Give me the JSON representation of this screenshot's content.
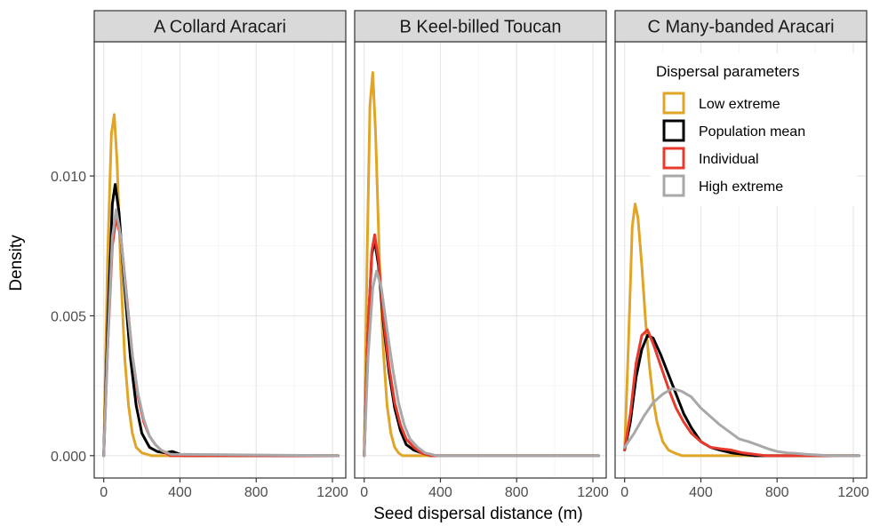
{
  "chart_data": {
    "type": "line",
    "facet_layout": "three panels side by side sharing y-axis",
    "xlabel": "Seed dispersal distance (m)",
    "ylabel": "Density",
    "xlim": [
      -50,
      1270
    ],
    "ylim": [
      -0.0008,
      0.0148
    ],
    "x_ticks": [
      0,
      400,
      800,
      1200
    ],
    "x_tick_labels": [
      "0",
      "400",
      "800",
      "1200"
    ],
    "y_ticks": [
      0.0,
      0.005,
      0.01
    ],
    "y_tick_labels": [
      "0.000",
      "0.005",
      "0.010"
    ],
    "grid": true,
    "legend": {
      "title": "Dispersal parameters",
      "placement": "inside panel C, top-right",
      "entries": [
        {
          "label": "Low extreme",
          "color": "#E0A526"
        },
        {
          "label": "Population mean",
          "color": "#000000"
        },
        {
          "label": "Individual",
          "color": "#E8392D"
        },
        {
          "label": "High extreme",
          "color": "#A8A8A8"
        }
      ]
    },
    "panels": [
      {
        "title": "A  Collard Aracari",
        "series": [
          {
            "name": "Low extreme",
            "color": "#E0A526",
            "x": [
              0,
              20,
              40,
              55,
              70,
              90,
              110,
              130,
              150,
              170,
              200,
              250,
              1230
            ],
            "y": [
              0,
              0.007,
              0.0115,
              0.0122,
              0.0105,
              0.0065,
              0.0035,
              0.0018,
              0.0008,
              0.0003,
              0.0001,
              0,
              0
            ]
          },
          {
            "name": "Population mean",
            "color": "#000000",
            "x": [
              0,
              20,
              45,
              60,
              80,
              110,
              140,
              170,
              200,
              240,
              280,
              320,
              360,
              380,
              420,
              1230
            ],
            "y": [
              0,
              0.0045,
              0.009,
              0.0097,
              0.0087,
              0.006,
              0.0035,
              0.0018,
              0.0008,
              0.0003,
              0.00015,
              0.0001,
              0.00015,
              0.0001,
              0,
              0
            ]
          },
          {
            "name": "Individual",
            "color": "#E8392D",
            "x": [
              0,
              20,
              45,
              65,
              90,
              120,
              150,
              180,
              210,
              240,
              270,
              300,
              350,
              1230
            ],
            "y": [
              0,
              0.0038,
              0.0075,
              0.0085,
              0.0078,
              0.0057,
              0.0036,
              0.0021,
              0.0012,
              0.0007,
              0.0004,
              0.0002,
              0,
              0
            ]
          },
          {
            "name": "High extreme",
            "color": "#A8A8A8",
            "x": [
              0,
              20,
              45,
              65,
              90,
              120,
              150,
              180,
              210,
              240,
              270,
              300,
              350,
              1230
            ],
            "y": [
              0,
              0.0038,
              0.0078,
              0.0088,
              0.0078,
              0.0056,
              0.0036,
              0.0022,
              0.0013,
              0.0007,
              0.0004,
              0.0002,
              5e-05,
              0
            ]
          }
        ]
      },
      {
        "title": "B  Keel-billed Toucan",
        "series": [
          {
            "name": "Low extreme",
            "color": "#E0A526",
            "x": [
              0,
              15,
              30,
              45,
              60,
              80,
              100,
              120,
              140,
              160,
              180,
              200,
              1230
            ],
            "y": [
              0,
              0.007,
              0.0125,
              0.0137,
              0.0115,
              0.007,
              0.0038,
              0.0018,
              0.0008,
              0.0003,
              0.0001,
              0,
              0
            ]
          },
          {
            "name": "Population mean",
            "color": "#000000",
            "x": [
              0,
              20,
              40,
              55,
              75,
              100,
              130,
              160,
              190,
              220,
              260,
              300,
              350,
              1230
            ],
            "y": [
              0,
              0.0045,
              0.0072,
              0.0077,
              0.0068,
              0.0048,
              0.003,
              0.0017,
              0.0009,
              0.0004,
              0.0002,
              0.0001,
              0,
              0
            ]
          },
          {
            "name": "Individual",
            "color": "#E8392D",
            "x": [
              0,
              20,
              40,
              55,
              75,
              100,
              130,
              160,
              190,
              220,
              260,
              300,
              350,
              1230
            ],
            "y": [
              0,
              0.0045,
              0.0073,
              0.0079,
              0.007,
              0.005,
              0.0032,
              0.0019,
              0.0011,
              0.0006,
              0.0003,
              0.0001,
              0,
              0
            ]
          },
          {
            "name": "High extreme",
            "color": "#A8A8A8",
            "x": [
              0,
              20,
              45,
              65,
              90,
              120,
              150,
              180,
              210,
              240,
              280,
              320,
              380,
              1230
            ],
            "y": [
              0,
              0.0035,
              0.006,
              0.0066,
              0.006,
              0.0045,
              0.0031,
              0.0019,
              0.0011,
              0.0006,
              0.0003,
              0.0001,
              0,
              0
            ]
          }
        ]
      },
      {
        "title": "C  Many-banded Aracari",
        "series": [
          {
            "name": "Low extreme",
            "color": "#E0A526",
            "x": [
              0,
              20,
              40,
              55,
              70,
              90,
              110,
              130,
              150,
              170,
              200,
              230,
              260,
              300,
              1230
            ],
            "y": [
              0.0002,
              0.004,
              0.0082,
              0.009,
              0.0085,
              0.0068,
              0.0048,
              0.0032,
              0.002,
              0.0012,
              0.0005,
              0.0002,
              0.0001,
              0,
              0
            ]
          },
          {
            "name": "Population mean",
            "color": "#000000",
            "x": [
              0,
              30,
              60,
              90,
              120,
              150,
              190,
              230,
              270,
              310,
              350,
              400,
              450,
              500,
              560,
              620,
              680,
              1230
            ],
            "y": [
              0.0002,
              0.0012,
              0.0028,
              0.0038,
              0.0043,
              0.0042,
              0.0036,
              0.0029,
              0.0022,
              0.0015,
              0.001,
              0.0005,
              0.0003,
              0.0002,
              0.0001,
              5e-05,
              0,
              0
            ]
          },
          {
            "name": "Individual",
            "color": "#E8392D",
            "x": [
              0,
              30,
              60,
              90,
              120,
              150,
              190,
              230,
              270,
              310,
              350,
              400,
              450,
              500,
              560,
              620,
              680,
              740,
              1230
            ],
            "y": [
              0.0002,
              0.0015,
              0.0033,
              0.0043,
              0.0045,
              0.004,
              0.0032,
              0.0024,
              0.0017,
              0.0012,
              0.0008,
              0.0005,
              0.0003,
              0.00025,
              0.0002,
              0.0001,
              5e-05,
              0,
              0
            ]
          },
          {
            "name": "High extreme",
            "color": "#A8A8A8",
            "x": [
              0,
              50,
              100,
              150,
              200,
              250,
              300,
              350,
              400,
              450,
              500,
              550,
              600,
              650,
              700,
              750,
              800,
              850,
              900,
              950,
              1000,
              1050,
              1100,
              1230
            ],
            "y": [
              0.0003,
              0.0008,
              0.0014,
              0.0019,
              0.0022,
              0.0024,
              0.0023,
              0.0021,
              0.0017,
              0.0014,
              0.0011,
              0.00085,
              0.0006,
              0.0005,
              0.00038,
              0.00025,
              0.00015,
              0.0001,
              8e-05,
              5e-05,
              3e-05,
              1e-05,
              0,
              0
            ]
          }
        ]
      }
    ]
  }
}
